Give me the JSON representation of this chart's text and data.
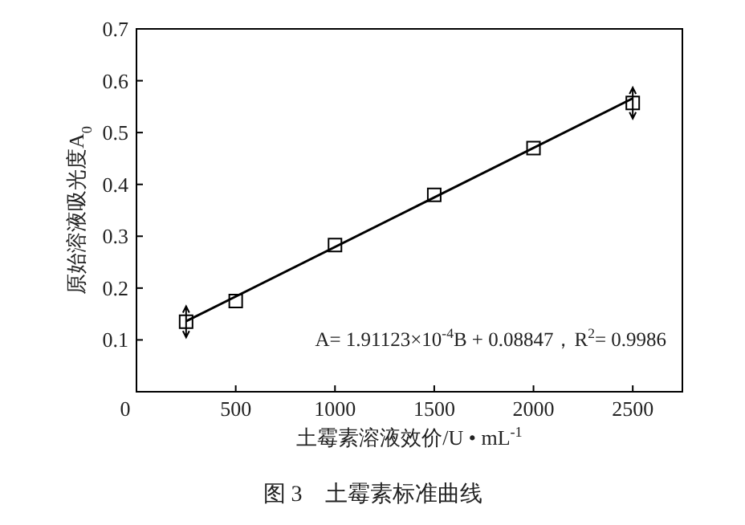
{
  "chart_data": {
    "type": "scatter",
    "xlabel": "土霉素溶液效价/U • mL$^{-1}$",
    "ylabel": "原始溶液吸光度A$_{0}$",
    "x": [
      250,
      500,
      1000,
      1500,
      2000,
      2500
    ],
    "series": [
      {
        "color": "#000000",
        "marker": "square",
        "values": [
          0.135,
          0.175,
          0.283,
          0.38,
          0.47,
          0.557
        ],
        "errors": [
          0.03,
          null,
          null,
          null,
          null,
          0.03
        ]
      },
      {
        "type": "line",
        "color": "#000000",
        "marker": "none",
        "line_style": "solid",
        "x": [
          250,
          2500
        ],
        "values": [
          0.136,
          0.566
        ]
      }
    ],
    "xlim": [
      0,
      2750
    ],
    "xticks": [
      0,
      500,
      1000,
      1500,
      2000,
      2500
    ],
    "ylim": [
      0,
      0.7
    ],
    "yticks": [
      0.1,
      0.2,
      0.3,
      0.4,
      0.5,
      0.6,
      0.7
    ],
    "grid": false,
    "annotations": [
      "A= 1.91123×10$^{-4}$B + 0.08847，R$^{2}$= 0.9986",
      "图 3　土霉素标准曲线"
    ]
  }
}
